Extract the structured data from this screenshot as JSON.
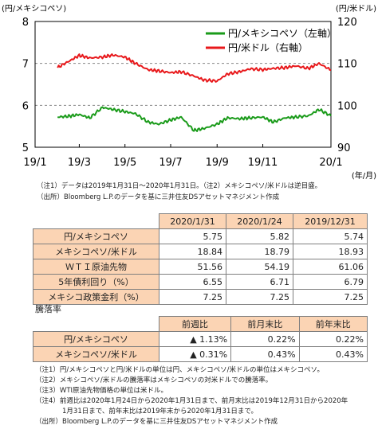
{
  "chart_data": {
    "type": "line",
    "yleft_label": "(円/メキシコペソ)",
    "yright_label": "(円/米ドル)",
    "xunit_label": "(年/月)",
    "x_ticks": [
      "19/1",
      "19/3",
      "19/5",
      "19/7",
      "19/9",
      "19/11",
      "20/1"
    ],
    "yleft_ticks": [
      "5",
      "6",
      "7",
      "8"
    ],
    "yright_ticks": [
      "90",
      "100",
      "110",
      "120"
    ],
    "yleft_lim": [
      5,
      8
    ],
    "yright_lim": [
      90,
      120
    ],
    "grid": "dashed-horizontal",
    "legend_position": "top-right",
    "series": [
      {
        "name": "円/メキシコペソ（左軸）",
        "axis": "left",
        "color": "#1a9b1a",
        "x": [
          "2019-01-31",
          "2019-02-15",
          "2019-03-01",
          "2019-03-15",
          "2019-04-01",
          "2019-04-15",
          "2019-05-01",
          "2019-05-15",
          "2019-06-01",
          "2019-06-15",
          "2019-07-01",
          "2019-07-15",
          "2019-08-01",
          "2019-08-15",
          "2019-09-01",
          "2019-09-15",
          "2019-10-01",
          "2019-10-15",
          "2019-11-01",
          "2019-11-15",
          "2019-12-01",
          "2019-12-15",
          "2020-01-01",
          "2020-01-15",
          "2020-01-31"
        ],
        "values": [
          5.72,
          5.74,
          5.78,
          5.7,
          5.95,
          5.9,
          5.85,
          5.8,
          5.6,
          5.55,
          5.65,
          5.72,
          5.4,
          5.45,
          5.55,
          5.7,
          5.68,
          5.7,
          5.72,
          5.6,
          5.7,
          5.72,
          5.75,
          5.9,
          5.75
        ]
      },
      {
        "name": "円/米ドル（右軸）",
        "axis": "right",
        "color": "#e8181b",
        "x": [
          "2019-01-31",
          "2019-02-15",
          "2019-03-01",
          "2019-03-15",
          "2019-04-01",
          "2019-04-15",
          "2019-05-01",
          "2019-05-15",
          "2019-06-01",
          "2019-06-15",
          "2019-07-01",
          "2019-07-15",
          "2019-08-01",
          "2019-08-15",
          "2019-09-01",
          "2019-09-15",
          "2019-10-01",
          "2019-10-15",
          "2019-11-01",
          "2019-11-15",
          "2019-12-01",
          "2019-12-15",
          "2020-01-01",
          "2020-01-15",
          "2020-01-31"
        ],
        "values": [
          109.0,
          110.5,
          111.9,
          111.3,
          111.5,
          112.0,
          111.5,
          110.0,
          108.5,
          108.2,
          107.8,
          108.0,
          107.0,
          106.0,
          105.8,
          107.5,
          108.0,
          108.7,
          108.5,
          108.8,
          109.0,
          109.4,
          108.8,
          110.0,
          108.4
        ]
      }
    ]
  },
  "chart_note": {
    "line1": "（注1）データは2019年1月31日～2020年1月31日。（注2）メキシコペソ/米ドルは逆目盛。",
    "line2": "（出所）Bloomberg L.P.のデータを基に三井住友DSアセットマネジメント作成"
  },
  "table1": {
    "headers": [
      "2020/1/31",
      "2020/1/24",
      "2019/12/31"
    ],
    "rows": [
      {
        "label": "円/メキシコペソ",
        "values": [
          "5.75",
          "5.82",
          "5.74"
        ]
      },
      {
        "label": "メキシコペソ/米ドル",
        "values": [
          "18.84",
          "18.79",
          "18.93"
        ]
      },
      {
        "label": "ＷＴＩ原油先物",
        "values": [
          "51.56",
          "54.19",
          "61.06"
        ]
      },
      {
        "label": "5年債利回り（%）",
        "values": [
          "6.55",
          "6.71",
          "6.79"
        ]
      },
      {
        "label": "メキシコ政策金利（%）",
        "values": [
          "7.25",
          "7.25",
          "7.25"
        ]
      }
    ]
  },
  "table2": {
    "title": "騰落率",
    "headers": [
      "前週比",
      "前月末比",
      "前年末比"
    ],
    "rows": [
      {
        "label": "円/メキシコペソ",
        "values": [
          "▲ 1.13%",
          "0.22%",
          "0.22%"
        ]
      },
      {
        "label": "メキシコペソ/米ドル",
        "values": [
          "▲ 0.31%",
          "0.43%",
          "0.43%"
        ]
      }
    ]
  },
  "footnotes": [
    "（注1）円/メキシコペソと円/米ドルの単位は円、メキシコペソ/米ドルの単位はメキシコペソ。",
    "（注2）メキシコペソ/米ドルの騰落率はメキシコペソの対米ドルでの騰落率。",
    "（注3）WTI原油先物価格の単位は米ドル。",
    "（注4）前週比は2020年1月24日から2020年1月31日まで、前月末比は2019年12月31日から2020年",
    "　　　　1月31日まで、前年末比は2019年末から2020年1月31日まで。",
    "（出所）Bloomberg L.P.のデータを基に三井住友DSアセットマネジメント作成"
  ]
}
